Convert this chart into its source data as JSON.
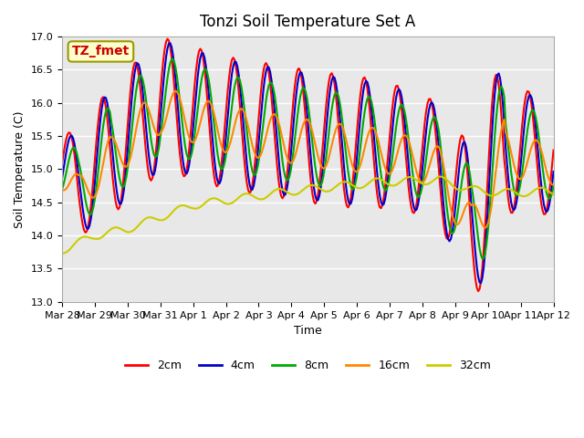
{
  "title": "Tonzi Soil Temperature Set A",
  "xlabel": "Time",
  "ylabel": "Soil Temperature (C)",
  "ylim": [
    13.0,
    17.0
  ],
  "yticks": [
    13.0,
    13.5,
    14.0,
    14.5,
    15.0,
    15.5,
    16.0,
    16.5,
    17.0
  ],
  "xtick_labels": [
    "Mar 28",
    "Mar 29",
    "Mar 30",
    "Mar 31",
    "Apr 1",
    "Apr 2",
    "Apr 3",
    "Apr 4",
    "Apr 5",
    "Apr 6",
    "Apr 7",
    "Apr 8",
    "Apr 9",
    "Apr 10",
    "Apr 11",
    "Apr 12"
  ],
  "annotation_text": "TZ_fmet",
  "annotation_color": "#cc0000",
  "annotation_bg": "#ffffcc",
  "annotation_border": "#999900",
  "bg_color": "#e8e8e8",
  "line_colors": {
    "2cm": "#ff0000",
    "4cm": "#0000cc",
    "8cm": "#00aa00",
    "16cm": "#ff8800",
    "32cm": "#cccc00"
  },
  "line_widths": {
    "2cm": 1.5,
    "4cm": 1.5,
    "8cm": 1.5,
    "16cm": 1.5,
    "32cm": 1.5
  }
}
